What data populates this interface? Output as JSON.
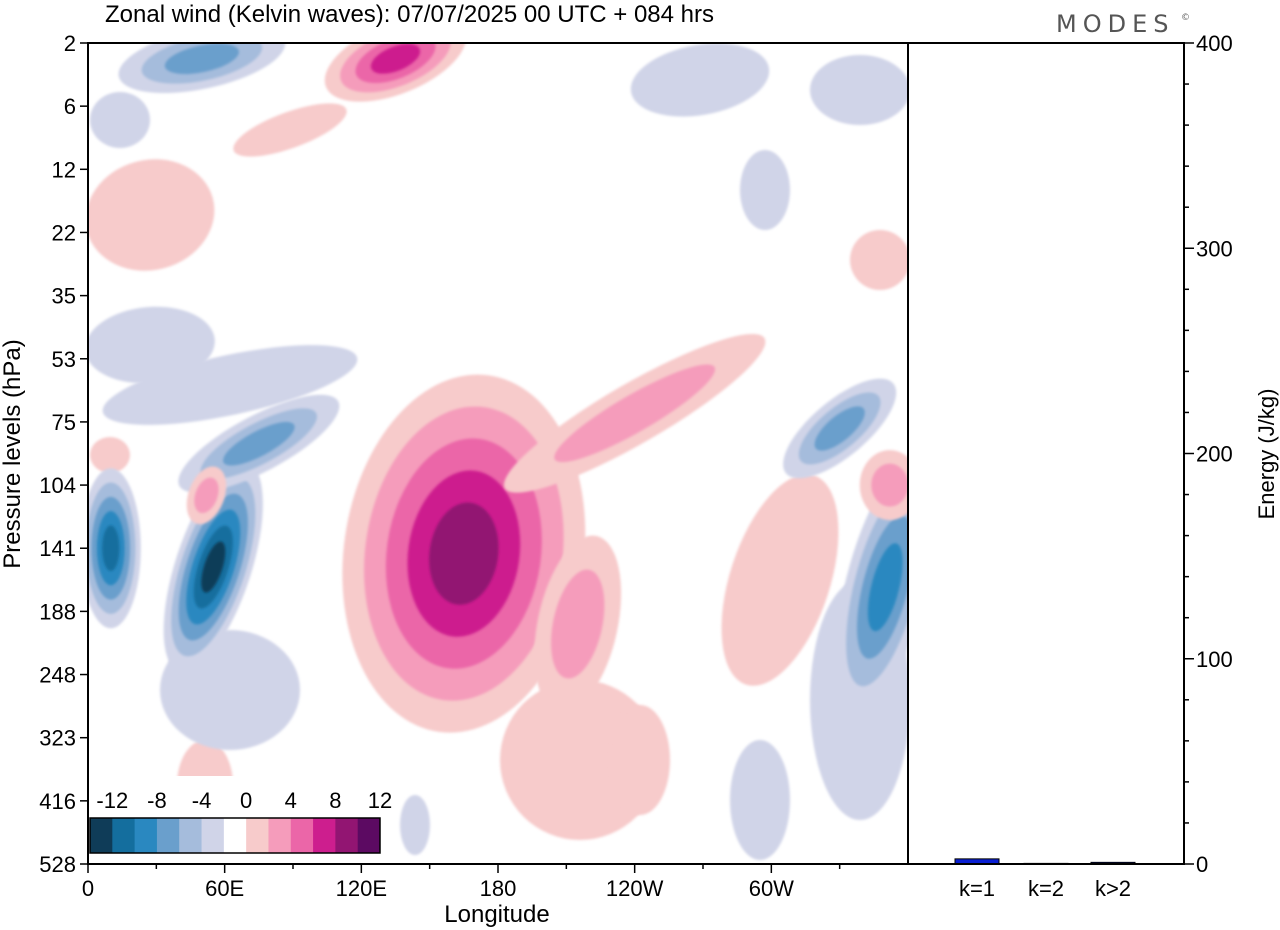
{
  "header": {
    "title": "Zonal wind (Kelvin waves):  07/07/2025  00 UTC  + 084 hrs",
    "brand": "MODES",
    "brand_mark": "©"
  },
  "colors": {
    "neg": [
      "#0f3c58",
      "#146e9e",
      "#2a88c0",
      "#6a9fcc",
      "#a5bcdc",
      "#d0d4e8"
    ],
    "zero": "#ffffff",
    "pos": [
      "#f7cbcb",
      "#f59cbb",
      "#eb66a8",
      "#cd1e8e",
      "#921572",
      "#5c0a62"
    ],
    "bar": "#0a1fd2",
    "frame": "#000000"
  },
  "chart_data": [
    {
      "type": "heatmap",
      "title": "Zonal wind (Kelvin waves):  07/07/2025  00 UTC  + 084 hrs",
      "xlabel": "Longitude",
      "ylabel": "Pressure levels (hPa)",
      "x_ticks": [
        "0",
        "60E",
        "120E",
        "180",
        "120W",
        "60W"
      ],
      "x_tick_values": [
        0,
        60,
        120,
        180,
        240,
        300
      ],
      "xlim": [
        0,
        360
      ],
      "y_ticks": [
        "2",
        "6",
        "12",
        "22",
        "35",
        "53",
        "75",
        "104",
        "141",
        "188",
        "248",
        "323",
        "416",
        "528"
      ],
      "colorbar": {
        "labels": [
          "-12",
          "-8",
          "-4",
          "0",
          "4",
          "8",
          "12"
        ],
        "levels": [
          -14,
          -12,
          -10,
          -8,
          -6,
          -4,
          -2,
          2,
          4,
          6,
          8,
          10,
          12,
          14
        ]
      },
      "features": [
        {
          "lon": 10,
          "level": 141,
          "value": -11
        },
        {
          "lon": 55,
          "level": 155,
          "value": -13
        },
        {
          "lon": 75,
          "level": 85,
          "value": -6
        },
        {
          "lon": 52,
          "level": 110,
          "value": 5
        },
        {
          "lon": 165,
          "level": 145,
          "value": 11
        },
        {
          "lon": 215,
          "level": 200,
          "value": 5
        },
        {
          "lon": 240,
          "level": 72,
          "value": 5
        },
        {
          "lon": 350,
          "level": 170,
          "value": -9
        },
        {
          "lon": 330,
          "level": 78,
          "value": -7
        },
        {
          "lon": 352,
          "level": 104,
          "value": 5
        },
        {
          "lon": 135,
          "level": 3,
          "value": 8
        },
        {
          "lon": 50,
          "level": 3,
          "value": -6
        }
      ]
    },
    {
      "type": "bar",
      "ylabel": "Energy (J/kg)",
      "categories": [
        "k=1",
        "k=2",
        "k>2"
      ],
      "values": [
        2.5,
        0.3,
        0.8
      ],
      "ylim": [
        0,
        400
      ],
      "y_ticks": [
        "0",
        "100",
        "200",
        "300",
        "400"
      ]
    }
  ]
}
